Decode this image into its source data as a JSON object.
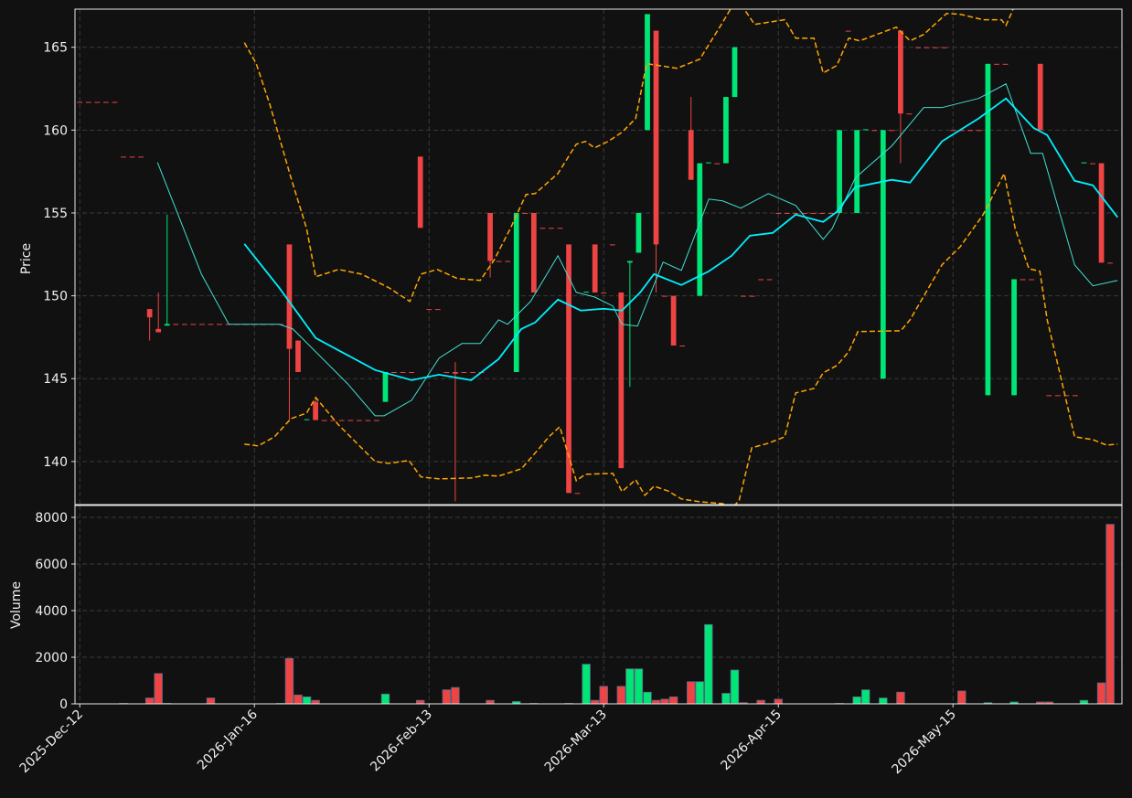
{
  "chart_data": {
    "type": "candlestick",
    "ylabel": "Price",
    "volume_label": "Volume",
    "categories": [
      "2025-Dec-12",
      null,
      null,
      null,
      null,
      null,
      null,
      null,
      null,
      null,
      null,
      null,
      null,
      null,
      null,
      null,
      null,
      null,
      null,
      null,
      "2026-Jan-16",
      null,
      null,
      null,
      null,
      null,
      null,
      null,
      null,
      null,
      null,
      null,
      null,
      null,
      null,
      null,
      null,
      null,
      null,
      null,
      "2026-Feb-13",
      null,
      null,
      null,
      null,
      null,
      null,
      null,
      null,
      null,
      null,
      null,
      null,
      null,
      null,
      null,
      null,
      null,
      null,
      null,
      "2026-Mar-13",
      null,
      null,
      null,
      null,
      null,
      null,
      null,
      null,
      null,
      null,
      null,
      null,
      null,
      null,
      null,
      null,
      null,
      null,
      null,
      "2026-Apr-15",
      null,
      null,
      null,
      null,
      null,
      null,
      null,
      null,
      null,
      null,
      null,
      null,
      null,
      null,
      null,
      null,
      null,
      null,
      null,
      "2026-May-15",
      null,
      null,
      null,
      null,
      null,
      null,
      null,
      null,
      null,
      null,
      null,
      null,
      null,
      null,
      null,
      null,
      null,
      null
    ],
    "open": [
      161.7,
      161.7,
      161.7,
      161.7,
      161.7,
      158.4,
      158.4,
      158.4,
      149.2,
      148.0,
      148.2,
      148.3,
      148.3,
      148.3,
      148.3,
      148.3,
      148.3,
      148.3,
      148.3,
      148.3,
      148.3,
      148.3,
      148.3,
      148.3,
      153.1,
      147.3,
      142.5,
      143.6,
      142.5,
      142.5,
      142.5,
      142.5,
      142.5,
      142.5,
      142.5,
      143.6,
      145.4,
      145.4,
      145.4,
      158.4,
      149.2,
      149.2,
      145.4,
      145.4,
      145.4,
      145.4,
      145.4,
      155.0,
      152.1,
      152.1,
      145.4,
      155.0,
      155.0,
      154.1,
      154.1,
      154.1,
      153.1,
      138.1,
      150.2,
      153.1,
      150.2,
      153.1,
      150.2,
      152.0,
      152.6,
      160.0,
      166.0,
      150.0,
      150.0,
      147.0,
      160.0,
      150.0,
      158.0,
      158.0,
      158.0,
      162.0,
      150.0,
      150.0,
      151.0,
      151.0,
      155.0,
      155.0,
      155.0,
      155.0,
      155.0,
      155.0,
      155.0,
      155.0,
      166.0,
      155.0,
      160.0,
      160.0,
      145.0,
      160.0,
      166.0,
      161.0,
      165.0,
      165.0,
      165.0,
      165.0,
      160.0,
      160.0,
      160.0,
      160.0,
      144.0,
      164.0,
      164.0,
      144.0,
      151.0,
      151.0,
      164.0,
      144.0,
      144.0,
      144.0,
      144.0,
      158.0,
      158.0,
      158.0,
      152.0
    ],
    "high": [
      161.7,
      161.7,
      161.7,
      161.7,
      161.7,
      158.4,
      158.4,
      158.4,
      149.2,
      150.2,
      154.9,
      148.3,
      148.3,
      148.3,
      148.3,
      148.3,
      148.3,
      148.3,
      148.3,
      148.3,
      148.3,
      148.3,
      148.3,
      148.3,
      153.1,
      147.3,
      142.55,
      143.9,
      142.5,
      142.5,
      142.5,
      142.5,
      142.5,
      142.5,
      142.5,
      145.4,
      145.4,
      145.4,
      145.4,
      158.4,
      149.2,
      149.2,
      145.4,
      146.0,
      145.4,
      145.4,
      145.4,
      155.0,
      152.1,
      152.1,
      155.0,
      155.0,
      155.0,
      154.1,
      154.1,
      154.1,
      153.1,
      138.1,
      150.25,
      153.1,
      150.2,
      153.1,
      150.2,
      152.1,
      155.0,
      167.0,
      166.0,
      150.0,
      150.0,
      147.0,
      162.0,
      158.0,
      158.05,
      158.0,
      162.0,
      165.0,
      150.0,
      150.0,
      151.0,
      151.0,
      155.0,
      155.0,
      155.0,
      155.0,
      155.0,
      155.0,
      155.0,
      160.0,
      166.0,
      160.0,
      160.05,
      160.0,
      160.0,
      160.0,
      166.0,
      161.0,
      165.0,
      165.0,
      165.0,
      165.0,
      160.0,
      160.0,
      160.0,
      160.0,
      164.0,
      164.0,
      164.0,
      151.0,
      151.0,
      151.0,
      164.0,
      144.0,
      144.0,
      144.0,
      144.0,
      158.05,
      158.0,
      158.0,
      152.0
    ],
    "low": [
      161.7,
      161.7,
      161.7,
      161.7,
      161.7,
      158.4,
      158.4,
      158.4,
      147.3,
      147.8,
      148.2,
      148.3,
      148.3,
      148.3,
      148.3,
      148.3,
      148.3,
      148.3,
      148.3,
      148.3,
      148.3,
      148.3,
      148.3,
      148.3,
      142.5,
      145.4,
      142.5,
      142.5,
      142.5,
      142.5,
      142.5,
      142.5,
      142.5,
      142.5,
      142.5,
      143.6,
      145.4,
      145.4,
      145.4,
      154.1,
      149.2,
      149.2,
      145.4,
      137.6,
      145.4,
      145.4,
      145.4,
      151.1,
      152.1,
      152.1,
      145.4,
      155.0,
      150.2,
      154.1,
      154.1,
      154.1,
      138.1,
      138.1,
      150.2,
      150.2,
      150.2,
      153.1,
      139.6,
      144.5,
      152.6,
      160.0,
      150.2,
      150.0,
      147.0,
      147.0,
      157.0,
      150.0,
      158.0,
      158.0,
      158.0,
      162.0,
      150.0,
      150.0,
      151.0,
      151.0,
      155.0,
      155.0,
      155.0,
      155.0,
      155.0,
      155.0,
      155.0,
      155.0,
      166.0,
      155.0,
      160.0,
      160.0,
      145.0,
      160.0,
      158.0,
      161.0,
      165.0,
      165.0,
      165.0,
      165.0,
      160.0,
      160.0,
      160.0,
      160.0,
      144.0,
      164.0,
      164.0,
      144.0,
      151.0,
      151.0,
      160.0,
      144.0,
      144.0,
      144.0,
      144.0,
      158.0,
      158.0,
      152.0,
      152.0
    ],
    "close": [
      161.7,
      161.7,
      161.7,
      161.7,
      161.7,
      158.4,
      158.4,
      158.4,
      148.7,
      147.8,
      148.3,
      148.3,
      148.3,
      148.3,
      148.3,
      148.3,
      148.3,
      148.3,
      148.3,
      148.3,
      148.3,
      148.3,
      148.3,
      148.3,
      146.8,
      145.4,
      142.55,
      142.5,
      142.5,
      142.5,
      142.5,
      142.5,
      142.5,
      142.5,
      142.5,
      145.4,
      145.4,
      145.4,
      145.4,
      154.1,
      149.2,
      149.2,
      145.4,
      145.3,
      145.4,
      145.4,
      145.4,
      152.1,
      152.1,
      152.1,
      155.0,
      155.0,
      150.2,
      154.1,
      154.1,
      154.1,
      138.1,
      138.1,
      150.25,
      150.2,
      150.2,
      153.1,
      139.6,
      152.1,
      155.0,
      167.0,
      153.1,
      150.0,
      147.0,
      147.0,
      157.0,
      158.0,
      158.05,
      158.0,
      162.0,
      165.0,
      150.0,
      150.0,
      151.0,
      151.0,
      155.0,
      155.0,
      155.0,
      155.0,
      155.0,
      155.0,
      155.0,
      160.0,
      166.0,
      160.0,
      160.05,
      160.0,
      160.0,
      160.0,
      161.0,
      161.0,
      165.0,
      165.0,
      165.0,
      165.0,
      160.0,
      160.0,
      160.0,
      160.0,
      164.0,
      164.0,
      164.0,
      151.0,
      151.0,
      151.0,
      160.0,
      144.0,
      144.0,
      144.0,
      144.0,
      158.05,
      158.0,
      152.0,
      152.0
    ],
    "volume": [
      0,
      0,
      0,
      0,
      0,
      20,
      0,
      0,
      250,
      1300,
      20,
      0,
      0,
      0,
      0,
      250,
      0,
      0,
      0,
      0,
      0,
      0,
      0,
      20,
      1950,
      380,
      300,
      150,
      0,
      0,
      0,
      0,
      0,
      0,
      0,
      420,
      0,
      0,
      0,
      150,
      0,
      0,
      600,
      700,
      0,
      0,
      0,
      150,
      0,
      0,
      100,
      0,
      20,
      0,
      0,
      0,
      20,
      0,
      1700,
      150,
      750,
      0,
      750,
      1500,
      1500,
      500,
      150,
      200,
      300,
      0,
      950,
      950,
      3400,
      0,
      450,
      1450,
      50,
      0,
      150,
      0,
      200,
      0,
      0,
      0,
      0,
      0,
      0,
      20,
      0,
      300,
      600,
      0,
      250,
      0,
      500,
      0,
      0,
      0,
      0,
      0,
      0,
      550,
      0,
      0,
      50,
      0,
      0,
      80,
      0,
      0,
      80,
      80,
      0,
      0,
      0,
      150,
      0,
      900,
      7700
    ],
    "xlim": [
      -0.55,
      119.35
    ],
    "ylim": [
      137.4,
      167.3
    ],
    "yticks": [
      140,
      145,
      150,
      155,
      160,
      165
    ],
    "volume_ylim": [
      0,
      8510
    ],
    "volume_yticks": [
      0,
      2000,
      4000,
      6000,
      8000
    ],
    "up_color": "#00e676",
    "down_color": "#ef4444",
    "grid": true,
    "overlays": [
      {
        "color": "#40e0d0",
        "linewidth": 1,
        "style": "solid",
        "x": [
          8.9,
          13.93,
          17.07,
          22.83,
          24.4,
          30.68,
          33.82,
          34.87,
          38.01,
          41.15,
          43.77,
          45.86,
          47.96,
          49.0,
          51.62,
          54.76,
          56.86,
          58.95,
          61.05,
          62.09,
          63.87,
          66.8,
          68.9,
          72.04,
          73.61,
          75.71,
          78.85,
          81.99,
          85.13,
          86.18,
          88.8,
          92.98,
          96.65,
          98.74,
          102.93,
          106.07,
          108.9,
          110.26,
          112.88,
          113.93,
          116.02,
          118.85
        ],
        "values": [
          158.05,
          151.31,
          148.28,
          148.28,
          148.0,
          144.69,
          142.76,
          142.76,
          143.7,
          146.24,
          147.12,
          147.12,
          148.55,
          148.28,
          149.66,
          152.42,
          150.21,
          149.93,
          149.38,
          148.28,
          148.17,
          152.03,
          151.53,
          155.84,
          155.73,
          155.29,
          156.17,
          155.45,
          153.41,
          154.07,
          157.11,
          159.04,
          161.36,
          161.36,
          161.91,
          162.79,
          158.6,
          158.6,
          153.8,
          151.87,
          150.6,
          150.93
        ]
      },
      {
        "color": "#00f0ff",
        "linewidth": 1.8,
        "style": "solid",
        "x": [
          18.85,
          22.83,
          27.02,
          33.83,
          38.01,
          41.15,
          44.82,
          47.96,
          50.58,
          52.15,
          54.76,
          57.38,
          60.0,
          62.09,
          64.19,
          65.76,
          68.9,
          72.04,
          74.66,
          76.75,
          79.37,
          81.99,
          85.13,
          86.7,
          88.8,
          92.98,
          95.08,
          98.74,
          102.93,
          106.07,
          109.21,
          110.79,
          113.93,
          116.02,
          118.85
        ],
        "values": [
          153.13,
          150.49,
          147.45,
          145.52,
          144.91,
          145.24,
          144.91,
          146.18,
          148.0,
          148.39,
          149.77,
          149.11,
          149.22,
          149.11,
          150.21,
          151.31,
          150.65,
          151.48,
          152.42,
          153.63,
          153.8,
          154.9,
          154.46,
          155.07,
          156.56,
          157.0,
          156.83,
          159.32,
          160.7,
          161.91,
          160.14,
          159.7,
          156.94,
          156.67,
          154.74
        ]
      },
      {
        "color": "#ffa500",
        "linewidth": 1.5,
        "style": "dashed",
        "x": [
          18.85,
          20.21,
          21.78,
          24.19,
          25.97,
          27.02,
          29.63,
          32.25,
          35.39,
          37.8,
          39.06,
          40.94,
          43.25,
          45.86,
          47.43,
          49.32,
          51.1,
          52.15,
          54.76,
          56.86,
          57.91,
          58.95,
          60.52,
          62.09,
          63.66,
          64.92,
          68.38,
          71.0,
          73.61,
          74.66,
          75.92,
          77.28,
          80.73,
          81.99,
          84.08,
          85.13,
          86.7,
          88.06,
          89.32,
          93.51,
          95.08,
          96.65,
          99.27,
          100.84,
          103.46,
          105.55,
          106.07,
          106.91
        ],
        "values": [
          165.28,
          164.01,
          161.52,
          157.11,
          154.07,
          151.15,
          151.59,
          151.31,
          150.49,
          149.66,
          151.31,
          151.59,
          151.04,
          150.93,
          152.14,
          154.07,
          156.11,
          156.17,
          157.38,
          159.15,
          159.32,
          158.93,
          159.32,
          159.87,
          160.7,
          164.01,
          163.73,
          164.28,
          166.49,
          167.43,
          167.43,
          166.38,
          166.66,
          165.55,
          165.55,
          163.45,
          163.9,
          165.55,
          165.39,
          166.21,
          165.39,
          165.77,
          167.04,
          166.99,
          166.66,
          166.66,
          166.32,
          167.32
        ]
      },
      {
        "color": "#ffa500",
        "linewidth": 1.5,
        "style": "dashed",
        "x": [
          18.85,
          20.42,
          22.3,
          24.19,
          25.97,
          27.02,
          29.63,
          32.25,
          33.82,
          35.39,
          37.7,
          39.06,
          41.15,
          44.82,
          46.39,
          47.96,
          50.58,
          52.67,
          53.72,
          54.97,
          56.86,
          57.91,
          61.05,
          62.09,
          63.66,
          64.71,
          65.76,
          67.33,
          68.9,
          71.0,
          73.61,
          74.66,
          75.5,
          76.96,
          78.85,
          80.73,
          81.99,
          84.08,
          85.13,
          86.7,
          88.06,
          89.11,
          94.03,
          95.08,
          98.74,
          100.84,
          103.46,
          105.86,
          107.12,
          108.69,
          109.95,
          110.79,
          112.15,
          113.93,
          116.02,
          117.59,
          118.85
        ],
        "values": [
          141.05,
          140.94,
          141.49,
          142.59,
          142.92,
          143.86,
          142.21,
          140.83,
          140.0,
          139.89,
          140.06,
          139.07,
          138.95,
          139.01,
          139.17,
          139.12,
          139.56,
          140.83,
          141.49,
          142.1,
          138.84,
          139.23,
          139.28,
          138.18,
          138.9,
          137.96,
          138.51,
          138.23,
          137.74,
          137.57,
          137.46,
          137.19,
          137.63,
          140.83,
          141.1,
          141.49,
          144.14,
          144.41,
          145.35,
          145.79,
          146.62,
          147.84,
          147.89,
          148.55,
          151.87,
          152.97,
          154.9,
          157.38,
          154.07,
          151.64,
          151.48,
          148.55,
          145.52,
          141.49,
          141.32,
          140.99,
          141.05
        ]
      }
    ]
  }
}
